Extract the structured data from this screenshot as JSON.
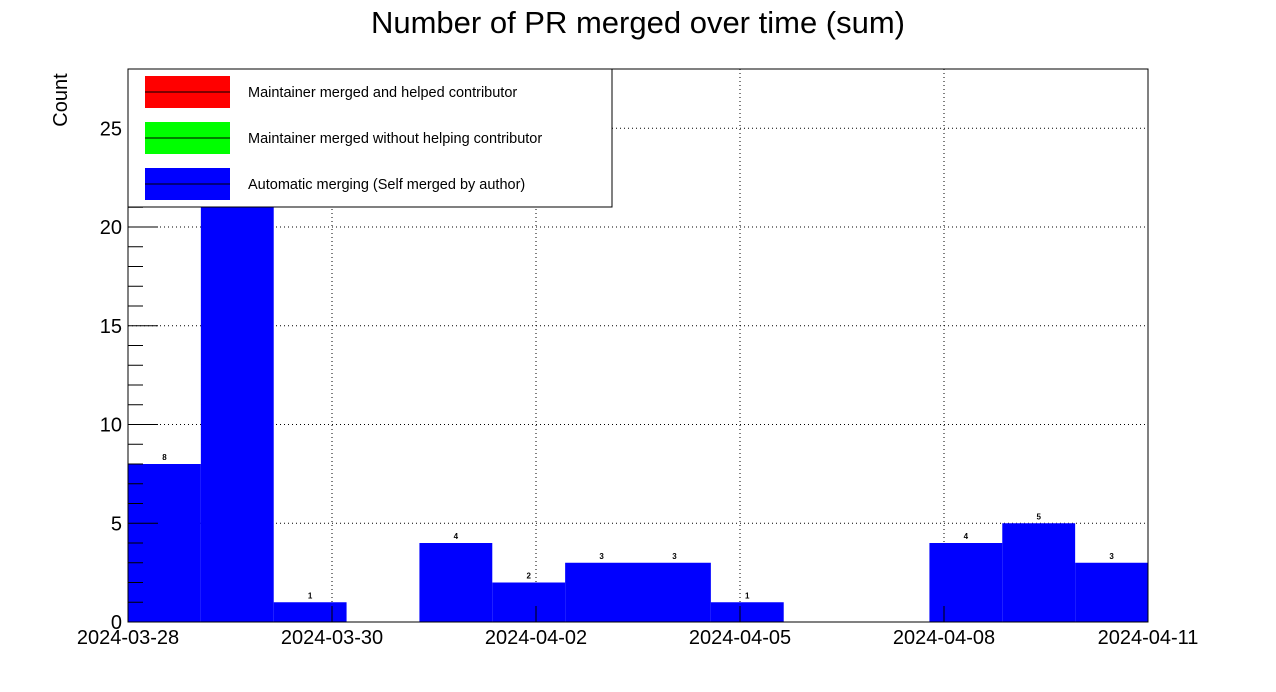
{
  "chart_data": {
    "type": "bar",
    "title": "Number of PR merged over time (sum)",
    "xlabel": "",
    "ylabel": "Count",
    "ylim": [
      0,
      28
    ],
    "y_ticks": [
      0,
      5,
      10,
      15,
      20,
      25
    ],
    "x_tick_labels": [
      "2024-03-28",
      "2024-03-30",
      "2024-04-02",
      "2024-04-05",
      "2024-04-08",
      "2024-04-11"
    ],
    "grid": true,
    "legend_position": "top-left",
    "series": [
      {
        "name": "Maintainer merged and helped contributor",
        "color": "#ff0000",
        "values": [
          0,
          0,
          0,
          0,
          0,
          0,
          0,
          0,
          0,
          0,
          0,
          0,
          0,
          0
        ]
      },
      {
        "name": "Maintainer merged without helping contributor",
        "color": "#00ff00",
        "values": [
          0,
          0,
          0,
          0,
          0,
          0,
          0,
          0,
          0,
          0,
          0,
          0,
          0,
          0
        ]
      },
      {
        "name": "Automatic merging (Self merged by author)",
        "color": "#0000ff",
        "values": [
          8,
          21,
          1,
          0,
          4,
          2,
          3,
          3,
          1,
          0,
          0,
          4,
          5,
          3
        ]
      }
    ],
    "bar_labels": [
      "8",
      "",
      "1",
      "",
      "4",
      "2",
      "3",
      "3",
      "1",
      "",
      "",
      "4",
      "5",
      "3"
    ]
  }
}
